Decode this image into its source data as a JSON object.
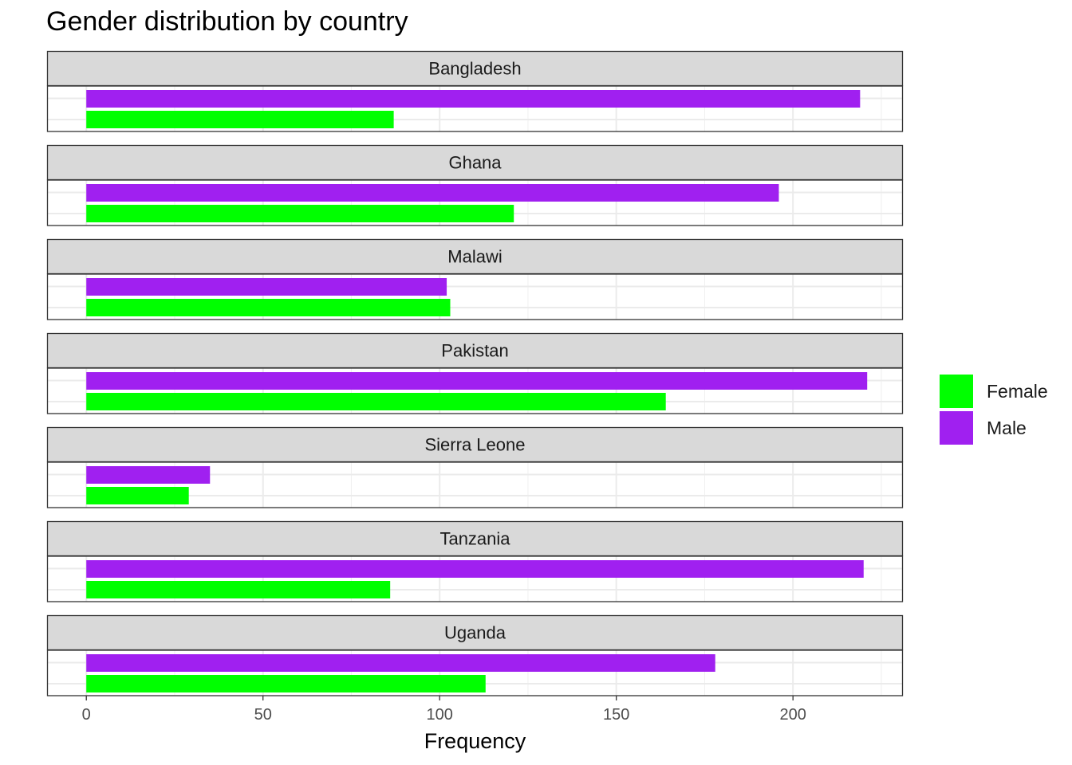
{
  "chart_data": {
    "type": "bar",
    "orientation": "horizontal",
    "faceted": true,
    "title": "Gender distribution by country",
    "xlabel": "Frequency",
    "ylabel": "",
    "xlim": [
      -11,
      231
    ],
    "x_ticks": [
      0,
      50,
      100,
      150,
      200
    ],
    "grid": true,
    "legend_position": "right",
    "legend": [
      {
        "label": "Female",
        "color": "#00ff00"
      },
      {
        "label": "Male",
        "color": "#a020f0"
      }
    ],
    "facets": [
      {
        "label": "Bangladesh",
        "values": {
          "Male": 219,
          "Female": 87
        }
      },
      {
        "label": "Ghana",
        "values": {
          "Male": 196,
          "Female": 121
        }
      },
      {
        "label": "Malawi",
        "values": {
          "Male": 102,
          "Female": 103
        }
      },
      {
        "label": "Pakistan",
        "values": {
          "Male": 221,
          "Female": 164
        }
      },
      {
        "label": "Sierra Leone",
        "values": {
          "Male": 35,
          "Female": 29
        }
      },
      {
        "label": "Tanzania",
        "values": {
          "Male": 220,
          "Female": 86
        }
      },
      {
        "label": "Uganda",
        "values": {
          "Male": 178,
          "Female": 113
        }
      }
    ]
  }
}
